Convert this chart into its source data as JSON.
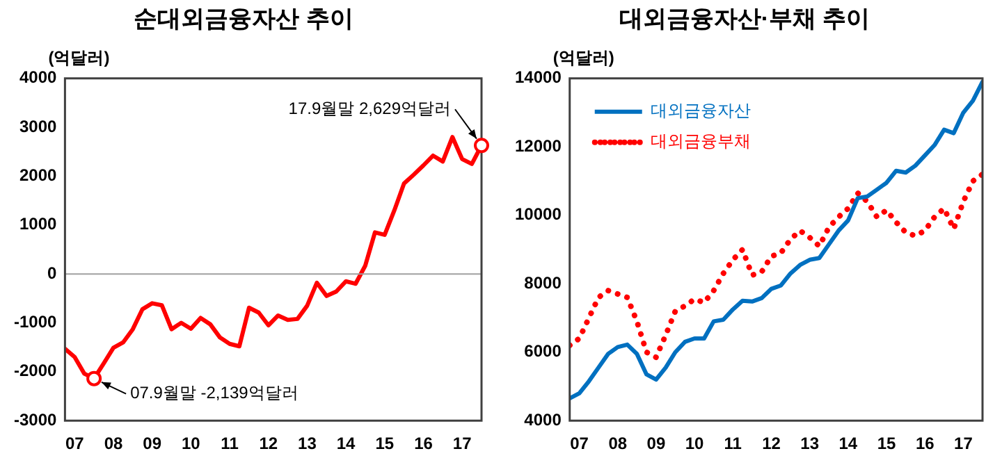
{
  "chart_data": [
    {
      "type": "line",
      "title": "순대외금융자산 추이",
      "ylabel": "(억달러)",
      "x": [
        "2006-12",
        "2007-03",
        "2007-06",
        "2007-09",
        "2007-12",
        "2008-03",
        "2008-06",
        "2008-09",
        "2008-12",
        "2009-03",
        "2009-06",
        "2009-09",
        "2009-12",
        "2010-03",
        "2010-06",
        "2010-09",
        "2010-12",
        "2011-03",
        "2011-06",
        "2011-09",
        "2011-12",
        "2012-03",
        "2012-06",
        "2012-09",
        "2012-12",
        "2013-03",
        "2013-06",
        "2013-09",
        "2013-12",
        "2014-03",
        "2014-06",
        "2014-09",
        "2014-12",
        "2015-03",
        "2015-06",
        "2015-09",
        "2015-12",
        "2016-03",
        "2016-06",
        "2016-09",
        "2016-12",
        "2017-03",
        "2017-06",
        "2017-09"
      ],
      "series": [
        {
          "color": "#ff0000",
          "values": [
            -1530,
            -1700,
            -2040,
            -2139,
            -1830,
            -1510,
            -1400,
            -1130,
            -720,
            -600,
            -640,
            -1130,
            -1000,
            -1120,
            -900,
            -1030,
            -1300,
            -1430,
            -1480,
            -690,
            -790,
            -1050,
            -850,
            -940,
            -920,
            -650,
            -180,
            -450,
            -360,
            -150,
            -200,
            170,
            850,
            800,
            1300,
            1850,
            2030,
            2220,
            2420,
            2300,
            2800,
            2350,
            2250,
            2629
          ]
        }
      ],
      "xlim": [
        "2006-12",
        "2017-09"
      ],
      "xticks": [
        {
          "value": "2007-03",
          "label": "07"
        },
        {
          "value": "2008-03",
          "label": "08"
        },
        {
          "value": "2009-03",
          "label": "09"
        },
        {
          "value": "2010-03",
          "label": "10"
        },
        {
          "value": "2011-03",
          "label": "11"
        },
        {
          "value": "2012-03",
          "label": "12"
        },
        {
          "value": "2013-03",
          "label": "13"
        },
        {
          "value": "2014-03",
          "label": "14"
        },
        {
          "value": "2015-03",
          "label": "15"
        },
        {
          "value": "2016-03",
          "label": "16"
        },
        {
          "value": "2017-03",
          "label": "17"
        }
      ],
      "ylim": [
        -3000,
        4000
      ],
      "yticks": [
        -3000,
        -2000,
        -1000,
        0,
        1000,
        2000,
        3000,
        4000
      ],
      "ref_lines": [
        {
          "axis": "y",
          "value": 0,
          "color": "#a0a0a0"
        }
      ],
      "annotations": [
        {
          "text": "07.9월말 -2,139억달러",
          "x": "2007-09",
          "y": -2139
        },
        {
          "text": "17.9월말 2,629억달러",
          "x": "2017-09",
          "y": 2629
        }
      ],
      "grid": false,
      "legend": false,
      "marker": "none",
      "line_style": "solid"
    },
    {
      "type": "line",
      "title": "대외금융자산·부채 추이",
      "ylabel": "(억달러)",
      "x": [
        "2006-12",
        "2007-03",
        "2007-06",
        "2007-09",
        "2007-12",
        "2008-03",
        "2008-06",
        "2008-09",
        "2008-12",
        "2009-03",
        "2009-06",
        "2009-09",
        "2009-12",
        "2010-03",
        "2010-06",
        "2010-09",
        "2010-12",
        "2011-03",
        "2011-06",
        "2011-09",
        "2011-12",
        "2012-03",
        "2012-06",
        "2012-09",
        "2012-12",
        "2013-03",
        "2013-06",
        "2013-09",
        "2013-12",
        "2014-03",
        "2014-06",
        "2014-09",
        "2014-12",
        "2015-03",
        "2015-06",
        "2015-09",
        "2015-12",
        "2016-03",
        "2016-06",
        "2016-09",
        "2016-12",
        "2017-03",
        "2017-06",
        "2017-09"
      ],
      "series": [
        {
          "name": "대외금융자산",
          "color": "#0070c0",
          "line_style": "solid",
          "values": [
            4650,
            4800,
            5150,
            5550,
            5950,
            6150,
            6220,
            5950,
            5350,
            5200,
            5550,
            6000,
            6300,
            6400,
            6400,
            6900,
            6950,
            7250,
            7500,
            7480,
            7580,
            7850,
            7950,
            8300,
            8550,
            8700,
            8750,
            9150,
            9550,
            9850,
            10500,
            10550,
            10750,
            10950,
            11300,
            11250,
            11450,
            11750,
            12050,
            12500,
            12400,
            13000,
            13350,
            13900
          ]
        },
        {
          "name": "대외금융부채",
          "color": "#ff0000",
          "line_style": "dotted",
          "values": [
            6200,
            6400,
            7000,
            7600,
            7800,
            7700,
            7600,
            6900,
            6000,
            5850,
            6500,
            7200,
            7350,
            7550,
            7450,
            7800,
            8300,
            8700,
            9000,
            8250,
            8350,
            8800,
            8900,
            9300,
            9550,
            9350,
            9100,
            9650,
            9950,
            10200,
            10650,
            10400,
            9950,
            10150,
            9800,
            9500,
            9400,
            9550,
            9950,
            10200,
            9600,
            10400,
            11000,
            11200
          ]
        }
      ],
      "xlim": [
        "2006-12",
        "2017-09"
      ],
      "xticks": [
        {
          "value": "2007-03",
          "label": "07"
        },
        {
          "value": "2008-03",
          "label": "08"
        },
        {
          "value": "2009-03",
          "label": "09"
        },
        {
          "value": "2010-03",
          "label": "10"
        },
        {
          "value": "2011-03",
          "label": "11"
        },
        {
          "value": "2012-03",
          "label": "12"
        },
        {
          "value": "2013-03",
          "label": "13"
        },
        {
          "value": "2014-03",
          "label": "14"
        },
        {
          "value": "2015-03",
          "label": "15"
        },
        {
          "value": "2016-03",
          "label": "16"
        },
        {
          "value": "2017-03",
          "label": "17"
        }
      ],
      "ylim": [
        4000,
        14000
      ],
      "yticks": [
        4000,
        6000,
        8000,
        10000,
        12000,
        14000
      ],
      "grid": false,
      "legend": "top left",
      "marker": "none"
    }
  ]
}
